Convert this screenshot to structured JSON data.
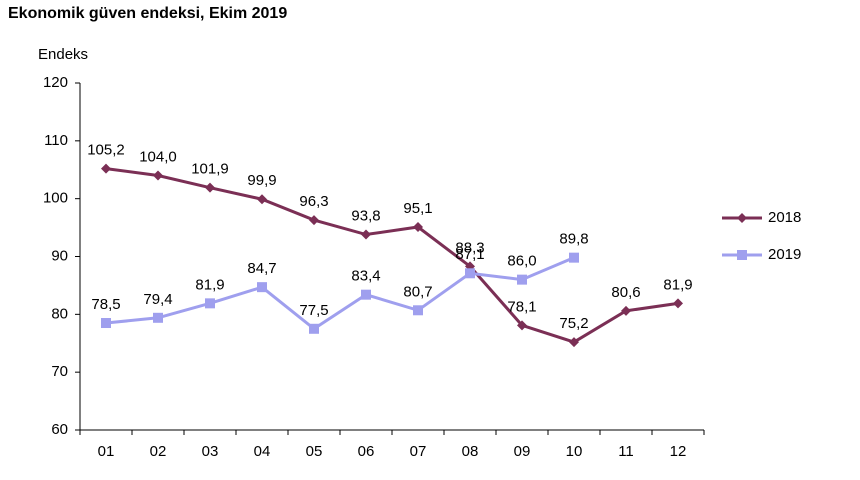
{
  "chart_data": {
    "type": "line",
    "title": "Ekonomik güven endeksi, Ekim 2019",
    "y_label": "Endeks",
    "categories": [
      "01",
      "02",
      "03",
      "04",
      "05",
      "06",
      "07",
      "08",
      "09",
      "10",
      "11",
      "12"
    ],
    "series": [
      {
        "name": "2018",
        "color": "#7b2f55",
        "marker": "diamond",
        "values": [
          105.2,
          104.0,
          101.9,
          99.9,
          96.3,
          93.8,
          95.1,
          88.3,
          78.1,
          75.2,
          80.6,
          81.9
        ],
        "value_labels": [
          "105,2",
          "104,0",
          "101,9",
          "99,9",
          "96,3",
          "93,8",
          "95,1",
          "88,3",
          "78,1",
          "75,2",
          "80,6",
          "81,9"
        ]
      },
      {
        "name": "2019",
        "color": "#9f9fee",
        "marker": "square",
        "values": [
          78.5,
          79.4,
          81.9,
          84.7,
          77.5,
          83.4,
          80.7,
          87.1,
          86.0,
          89.8,
          null,
          null
        ],
        "value_labels": [
          "78,5",
          "79,4",
          "81,9",
          "84,7",
          "77,5",
          "83,4",
          "80,7",
          "87,1",
          "86,0",
          "89,8",
          null,
          null
        ]
      }
    ],
    "ylim": [
      60,
      120
    ],
    "yticks": [
      60,
      70,
      80,
      90,
      100,
      110,
      120
    ],
    "legend": "right"
  }
}
